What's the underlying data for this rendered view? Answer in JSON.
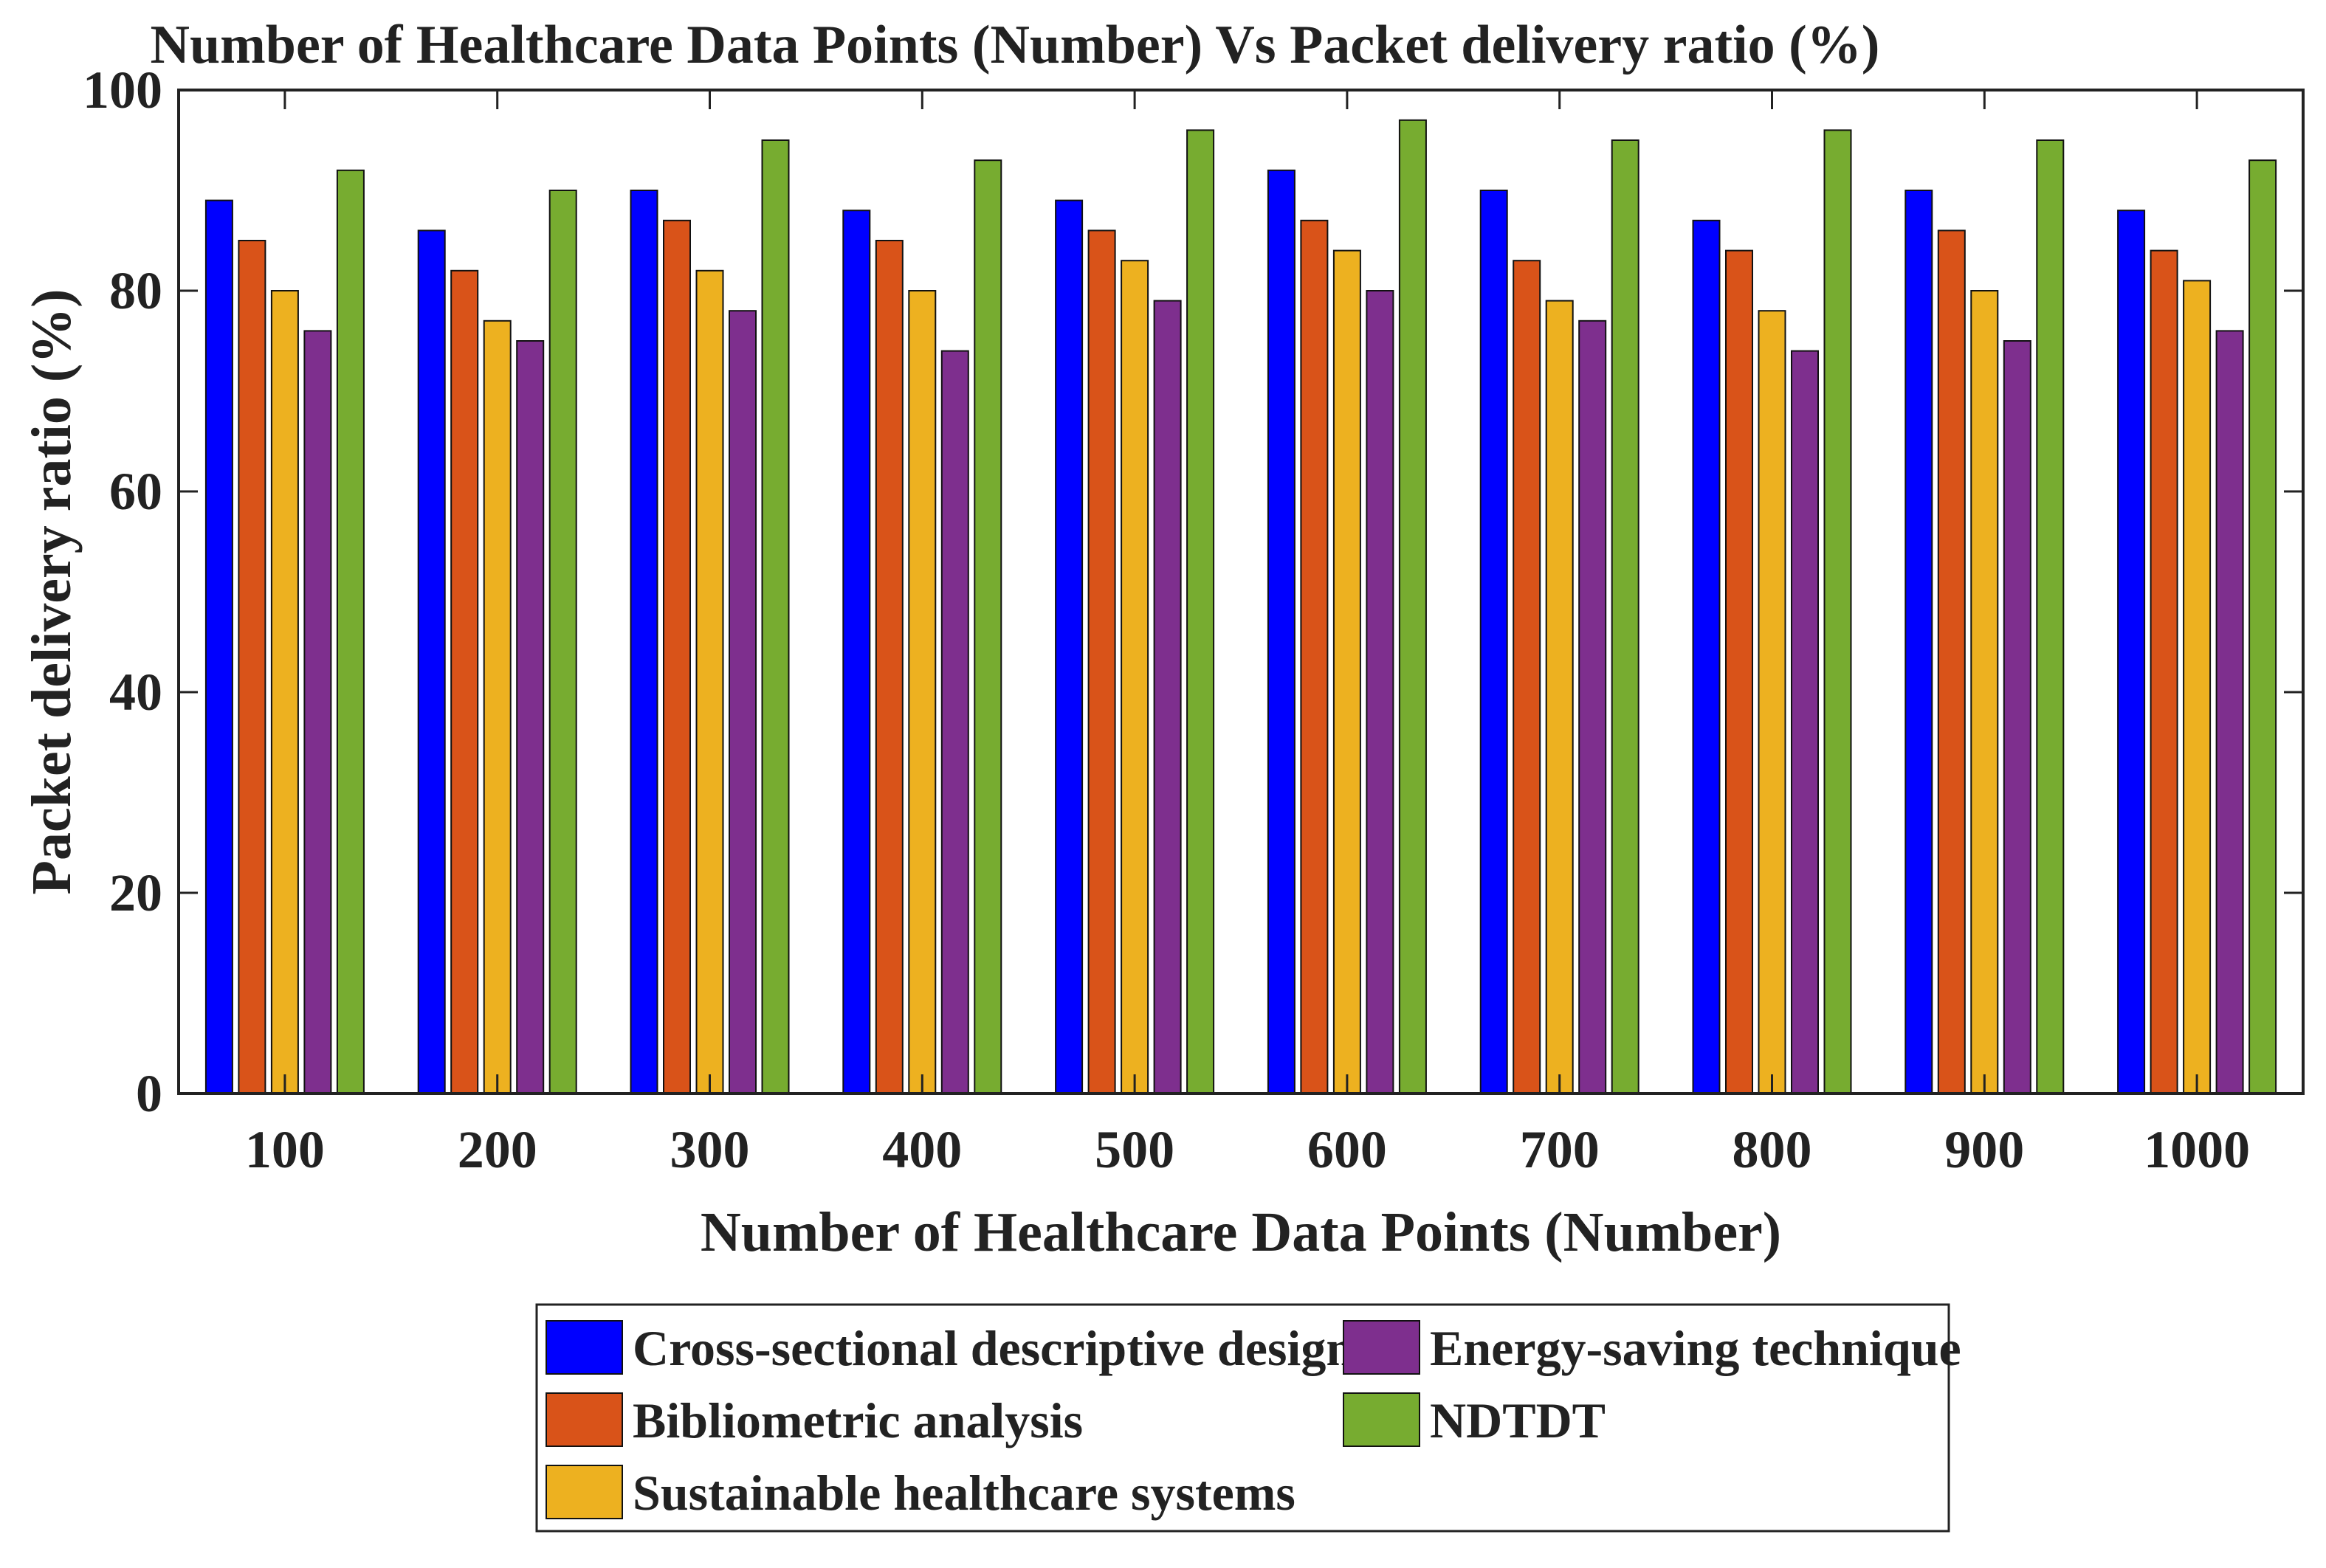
{
  "chart_data": {
    "type": "bar",
    "title": "Number of Healthcare Data Points (Number) Vs Packet delivery ratio (%)",
    "xlabel": "Number of Healthcare Data Points (Number)",
    "ylabel": "Packet delivery ratio (%)",
    "ylim": [
      0,
      100
    ],
    "yticks": [
      "0",
      "20",
      "40",
      "60",
      "80",
      "100"
    ],
    "categories": [
      "100",
      "200",
      "300",
      "400",
      "500",
      "600",
      "700",
      "800",
      "900",
      "1000"
    ],
    "grid": false,
    "legend_position": "bottom-center",
    "series": [
      {
        "name": "Cross-sectional descriptive design",
        "color": "#0000ff",
        "values": [
          89,
          86,
          90,
          88,
          89,
          92,
          90,
          87,
          90,
          88
        ]
      },
      {
        "name": "Bibliometric analysis",
        "color": "#d95319",
        "values": [
          85,
          82,
          87,
          85,
          86,
          87,
          83,
          84,
          86,
          84
        ]
      },
      {
        "name": "Sustainable healthcare systems",
        "color": "#edb120",
        "values": [
          80,
          77,
          82,
          80,
          83,
          84,
          79,
          78,
          80,
          81
        ]
      },
      {
        "name": "Energy-saving technique",
        "color": "#7e2f8e",
        "values": [
          76,
          75,
          78,
          74,
          79,
          80,
          77,
          74,
          75,
          76
        ]
      },
      {
        "name": "NDTDT",
        "color": "#77ac30",
        "values": [
          92,
          90,
          95,
          93,
          96,
          97,
          95,
          96,
          95,
          93
        ]
      }
    ]
  }
}
